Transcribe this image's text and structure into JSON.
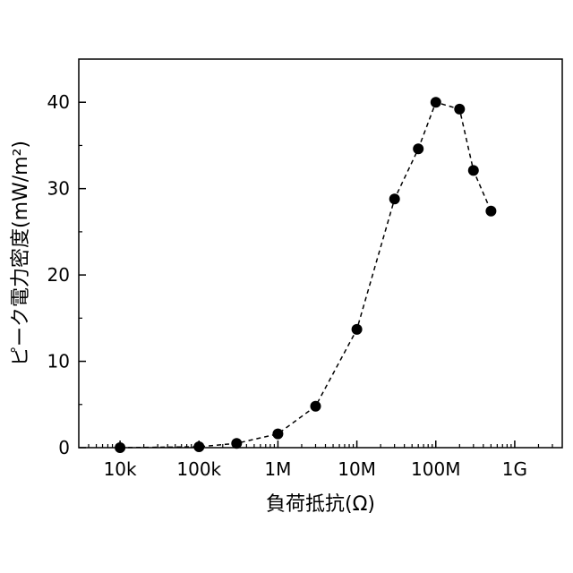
{
  "chart_data": {
    "type": "scatter",
    "xscale": "log",
    "xlim": [
      3000,
      4000000000
    ],
    "ylim": [
      0,
      45
    ],
    "xlabel": "負荷抵抗(Ω)",
    "ylabel": "ピーク電力密度(mW/m²)",
    "xticks": [
      {
        "value": 10000,
        "label": "10k"
      },
      {
        "value": 100000,
        "label": "100k"
      },
      {
        "value": 1000000,
        "label": "1M"
      },
      {
        "value": 10000000,
        "label": "10M"
      },
      {
        "value": 100000000,
        "label": "100M"
      },
      {
        "value": 1000000000,
        "label": "1G"
      }
    ],
    "yticks": [
      {
        "value": 0,
        "label": "0"
      },
      {
        "value": 10,
        "label": "10"
      },
      {
        "value": 20,
        "label": "20"
      },
      {
        "value": 30,
        "label": "30"
      },
      {
        "value": 40,
        "label": "40"
      }
    ],
    "series": [
      {
        "line_style": "dashed",
        "marker": "circle",
        "color": "#000000",
        "x": [
          10000,
          100000,
          300000,
          1000000,
          3000000,
          10000000,
          30000000,
          60000000,
          100000000,
          200000000,
          300000000,
          500000000
        ],
        "y": [
          0.0,
          0.1,
          0.5,
          1.6,
          4.8,
          13.7,
          28.8,
          34.6,
          40.0,
          39.2,
          32.1,
          27.4
        ]
      }
    ],
    "grid": false,
    "legend": "none"
  }
}
